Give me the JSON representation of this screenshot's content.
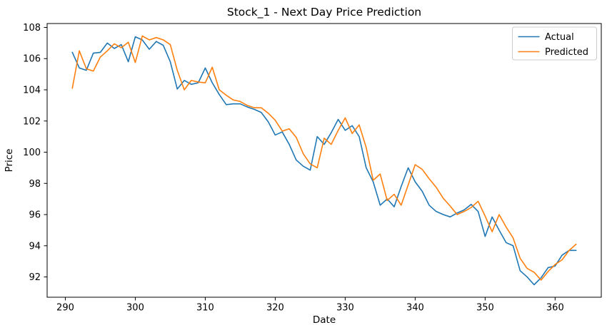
{
  "figure": {
    "background": "#ffffff"
  },
  "legend": {
    "position": "upper right",
    "items": [
      {
        "label": "Actual",
        "color": "#1f77b4"
      },
      {
        "label": "Predicted",
        "color": "#ff7f0e"
      }
    ]
  },
  "chart_data": {
    "type": "line",
    "title": "Stock_1 - Next Day Price Prediction",
    "xlabel": "Date",
    "ylabel": "Price",
    "grid": false,
    "legend_position": "upper right",
    "xlim": [
      287.4,
      366.6
    ],
    "ylim": [
      90.7,
      108.25
    ],
    "x_ticks": [
      290,
      300,
      310,
      320,
      330,
      340,
      350,
      360
    ],
    "y_ticks": [
      92,
      94,
      96,
      98,
      100,
      102,
      104,
      106,
      108
    ],
    "x": [
      291,
      292,
      293,
      294,
      295,
      296,
      297,
      298,
      299,
      300,
      301,
      302,
      303,
      304,
      305,
      306,
      307,
      308,
      309,
      310,
      311,
      312,
      313,
      314,
      315,
      316,
      317,
      318,
      319,
      320,
      321,
      322,
      323,
      324,
      325,
      326,
      327,
      328,
      329,
      330,
      331,
      332,
      333,
      334,
      335,
      336,
      337,
      338,
      339,
      340,
      341,
      342,
      343,
      344,
      345,
      346,
      347,
      348,
      349,
      350,
      351,
      352,
      353,
      354,
      355,
      356,
      357,
      358,
      359,
      360,
      361,
      362,
      363
    ],
    "series": [
      {
        "name": "Actual",
        "color": "#1f77b4",
        "values": [
          106.4,
          105.4,
          105.25,
          106.35,
          106.4,
          107.0,
          106.65,
          106.9,
          105.8,
          107.4,
          107.2,
          106.6,
          107.1,
          106.85,
          105.8,
          104.05,
          104.6,
          104.35,
          104.45,
          105.4,
          104.45,
          103.7,
          103.05,
          103.1,
          103.1,
          102.9,
          102.75,
          102.55,
          101.95,
          101.1,
          101.3,
          100.5,
          99.5,
          99.1,
          98.85,
          101.0,
          100.5,
          101.25,
          102.1,
          101.4,
          101.7,
          101.0,
          99.0,
          98.1,
          96.6,
          97.0,
          96.5,
          97.8,
          99.0,
          98.1,
          97.5,
          96.6,
          96.2,
          96.0,
          95.85,
          96.1,
          96.3,
          96.65,
          96.2,
          94.6,
          95.85,
          95.0,
          94.2,
          94.0,
          92.4,
          92.0,
          91.5,
          91.95,
          92.6,
          92.7,
          93.4,
          93.7,
          93.7
        ]
      },
      {
        "name": "Predicted",
        "color": "#ff7f0e",
        "values": [
          104.1,
          106.5,
          105.35,
          105.2,
          106.1,
          106.5,
          106.95,
          106.7,
          107.05,
          105.75,
          107.45,
          107.2,
          107.35,
          107.2,
          106.9,
          105.25,
          104.0,
          104.6,
          104.5,
          104.45,
          105.45,
          104.0,
          103.65,
          103.35,
          103.25,
          103.0,
          102.85,
          102.85,
          102.5,
          102.05,
          101.35,
          101.5,
          100.95,
          99.9,
          99.25,
          99.0,
          100.9,
          100.5,
          101.4,
          102.2,
          101.2,
          101.75,
          100.3,
          98.2,
          98.6,
          96.9,
          97.3,
          96.6,
          97.9,
          99.2,
          98.9,
          98.3,
          97.75,
          97.05,
          96.55,
          96.0,
          96.2,
          96.45,
          96.85,
          95.9,
          94.9,
          96.0,
          95.2,
          94.5,
          93.2,
          92.55,
          92.3,
          91.8,
          92.35,
          92.8,
          93.1,
          93.7,
          94.1
        ]
      }
    ]
  }
}
